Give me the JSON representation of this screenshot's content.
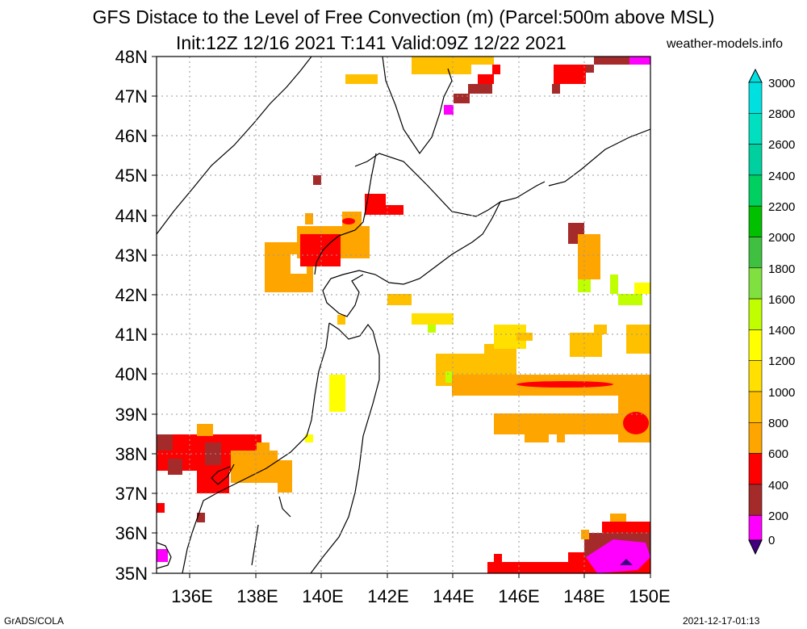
{
  "title": {
    "line1": "GFS Distace to the Level of Free Convection (m) (Parcel:500m above MSL)",
    "line2": "Init:12Z 12/16 2021 T:141 Valid:09Z 12/22 2021",
    "site": "weather-models.info"
  },
  "footer": {
    "left": "GrADS/COLA",
    "right": "2021-12-17-01:13"
  },
  "map": {
    "lon_range": [
      135,
      150
    ],
    "lat_range": [
      35,
      48
    ],
    "lat_labels": [
      "35N",
      "36N",
      "37N",
      "38N",
      "39N",
      "40N",
      "41N",
      "42N",
      "43N",
      "44N",
      "45N",
      "46N",
      "47N",
      "48N"
    ],
    "lon_labels": [
      "136E",
      "138E",
      "140E",
      "142E",
      "144E",
      "146E",
      "148E",
      "150E"
    ],
    "grid": "dotted"
  },
  "colorbar": {
    "levels": [
      "0",
      "200",
      "400",
      "600",
      "800",
      "1000",
      "1200",
      "1400",
      "1600",
      "1800",
      "2000",
      "2200",
      "2400",
      "2600",
      "2800",
      "3000"
    ],
    "colors": [
      "#400080",
      "#ff00ff",
      "#a52a2a",
      "#ff0000",
      "#ffa500",
      "#ffc000",
      "#ffe000",
      "#ffff00",
      "#c0ff00",
      "#80e040",
      "#40c040",
      "#00c000",
      "#00d060",
      "#00d0a0",
      "#00e0c0",
      "#00e0e0"
    ]
  },
  "chart_data": {
    "type": "heatmap",
    "field": "Distance to LFC (m)",
    "cells": [
      {
        "lon": 135.3,
        "lat": 38.1,
        "value": 500
      },
      {
        "lon": 135.8,
        "lat": 37.9,
        "value": 300
      },
      {
        "lon": 136.8,
        "lat": 37.8,
        "value": 500
      },
      {
        "lon": 137.5,
        "lat": 37.7,
        "value": 800
      },
      {
        "lon": 138.3,
        "lat": 37.6,
        "value": 900
      },
      {
        "lon": 135.2,
        "lat": 36.6,
        "value": 500
      },
      {
        "lon": 135.2,
        "lat": 35.5,
        "value": 100
      },
      {
        "lon": 140.0,
        "lat": 43.3,
        "value": 500
      },
      {
        "lon": 139.6,
        "lat": 43.0,
        "value": 900
      },
      {
        "lon": 140.5,
        "lat": 43.6,
        "value": 700
      },
      {
        "lon": 141.2,
        "lat": 44.2,
        "value": 500
      },
      {
        "lon": 139.8,
        "lat": 44.8,
        "value": 300
      },
      {
        "lon": 141.0,
        "lat": 47.3,
        "value": 900
      },
      {
        "lon": 143.4,
        "lat": 47.8,
        "value": 900
      },
      {
        "lon": 144.6,
        "lat": 47.2,
        "value": 500
      },
      {
        "lon": 144.3,
        "lat": 46.8,
        "value": 300
      },
      {
        "lon": 144.0,
        "lat": 46.6,
        "value": 100
      },
      {
        "lon": 148.0,
        "lat": 47.4,
        "value": 500
      },
      {
        "lon": 149.6,
        "lat": 47.9,
        "value": 300
      },
      {
        "lon": 148.2,
        "lat": 43.2,
        "value": 900
      },
      {
        "lon": 149.5,
        "lat": 42.0,
        "value": 1500
      },
      {
        "lon": 140.3,
        "lat": 39.2,
        "value": 1400
      },
      {
        "lon": 139.6,
        "lat": 38.4,
        "value": 1500
      },
      {
        "lon": 143.2,
        "lat": 41.4,
        "value": 1300
      },
      {
        "lon": 142.4,
        "lat": 41.9,
        "value": 1100
      },
      {
        "lon": 144.5,
        "lat": 40.4,
        "value": 1000
      },
      {
        "lon": 146.5,
        "lat": 40.0,
        "value": 900
      },
      {
        "lon": 148.0,
        "lat": 39.8,
        "value": 700
      },
      {
        "lon": 149.5,
        "lat": 38.8,
        "value": 500
      },
      {
        "lon": 147.0,
        "lat": 38.8,
        "value": 900
      },
      {
        "lon": 146.0,
        "lat": 41.0,
        "value": 1100
      },
      {
        "lon": 149.0,
        "lat": 41.0,
        "value": 1100
      },
      {
        "lon": 149.2,
        "lat": 35.4,
        "value": 100
      },
      {
        "lon": 148.5,
        "lat": 35.9,
        "value": 500
      },
      {
        "lon": 146.5,
        "lat": 35.2,
        "value": 500
      },
      {
        "lon": 149.5,
        "lat": 35.2,
        "value": 0
      }
    ]
  }
}
